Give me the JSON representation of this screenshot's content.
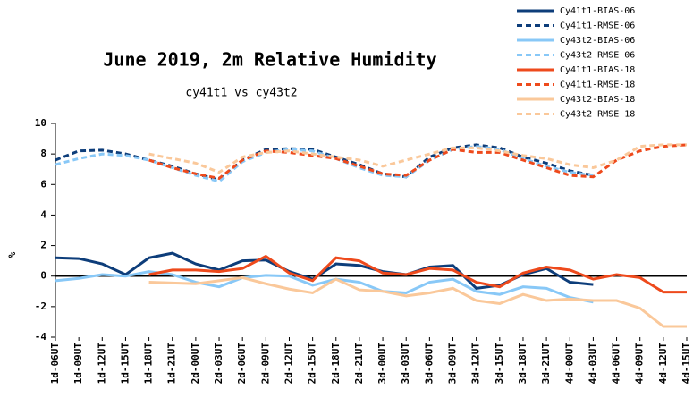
{
  "chart_data": {
    "type": "line",
    "title": "June 2019, 2m Relative Humidity",
    "subtitle": "cy41t1 vs cy43t2",
    "ylabel": "%",
    "categories": [
      "1d-06UT",
      "1d-09UT",
      "1d-12UT",
      "1d-15UT",
      "1d-18UT",
      "1d-21UT",
      "2d-00UT",
      "2d-03UT",
      "2d-06UT",
      "2d-09UT",
      "2d-12UT",
      "2d-15UT",
      "2d-18UT",
      "2d-21UT",
      "3d-00UT",
      "3d-03UT",
      "3d-06UT",
      "3d-09UT",
      "3d-12UT",
      "3d-15UT",
      "3d-18UT",
      "3d-21UT",
      "4d-00UT",
      "4d-03UT",
      "4d-06UT",
      "4d-09UT",
      "4d-12UT",
      "4d-15UT"
    ],
    "ylim": [
      -4,
      10
    ],
    "yticks": [
      -4,
      -2,
      0,
      2,
      4,
      6,
      8,
      10
    ],
    "grid": false,
    "legend": "top-right",
    "series": [
      {
        "name": "Cy41t1-BIAS-06",
        "color": "#0d3d7a",
        "dash": false,
        "values": [
          1.2,
          1.15,
          0.8,
          0.1,
          1.2,
          1.5,
          0.8,
          0.4,
          1.0,
          1.05,
          0.3,
          -0.2,
          0.8,
          0.7,
          0.3,
          0.1,
          0.6,
          0.7,
          -0.8,
          -0.6,
          0.1,
          0.5,
          -0.4,
          -0.55,
          null,
          null,
          null,
          null
        ]
      },
      {
        "name": "Cy41t1-RMSE-06",
        "color": "#0d3d7a",
        "dash": true,
        "values": [
          7.6,
          8.2,
          8.25,
          8.0,
          7.6,
          7.2,
          6.7,
          6.3,
          7.6,
          8.3,
          8.35,
          8.3,
          7.8,
          7.3,
          6.7,
          6.5,
          7.8,
          8.4,
          8.6,
          8.4,
          7.8,
          7.4,
          6.9,
          6.6,
          null,
          null,
          null,
          null
        ]
      },
      {
        "name": "Cy43t2-BIAS-06",
        "color": "#88c8f7",
        "dash": false,
        "values": [
          -0.3,
          -0.15,
          0.1,
          0.0,
          0.3,
          0.1,
          -0.4,
          -0.7,
          -0.1,
          0.05,
          0.0,
          -0.6,
          -0.2,
          -0.4,
          -1.0,
          -1.1,
          -0.4,
          -0.2,
          -1.0,
          -1.2,
          -0.7,
          -0.8,
          -1.4,
          -1.7,
          null,
          null,
          null,
          null
        ]
      },
      {
        "name": "Cy43t2-RMSE-06",
        "color": "#88c8f7",
        "dash": true,
        "values": [
          7.3,
          7.7,
          8.0,
          7.9,
          7.6,
          7.1,
          6.6,
          6.2,
          7.5,
          8.1,
          8.3,
          8.2,
          7.7,
          7.1,
          6.6,
          6.5,
          7.6,
          8.3,
          8.5,
          8.3,
          7.7,
          7.2,
          6.8,
          6.6,
          null,
          null,
          null,
          null
        ]
      },
      {
        "name": "Cy41t1-BIAS-18",
        "color": "#ee4a1c",
        "dash": false,
        "values": [
          null,
          null,
          null,
          null,
          0.1,
          0.4,
          0.4,
          0.3,
          0.5,
          1.3,
          0.2,
          -0.3,
          1.2,
          1.0,
          0.2,
          0.1,
          0.5,
          0.4,
          -0.4,
          -0.7,
          0.2,
          0.6,
          0.4,
          -0.2,
          0.1,
          -0.1,
          -1.05,
          -1.05
        ]
      },
      {
        "name": "Cy41t1-RMSE-18",
        "color": "#ee4a1c",
        "dash": true,
        "values": [
          null,
          null,
          null,
          null,
          7.6,
          7.1,
          6.7,
          6.4,
          7.6,
          8.2,
          8.1,
          7.9,
          7.7,
          7.2,
          6.7,
          6.6,
          7.6,
          8.3,
          8.1,
          8.1,
          7.6,
          7.1,
          6.6,
          6.5,
          7.6,
          8.2,
          8.5,
          8.6
        ]
      },
      {
        "name": "Cy43t2-BIAS-18",
        "color": "#fac89a",
        "dash": false,
        "values": [
          null,
          null,
          null,
          null,
          -0.4,
          -0.45,
          -0.5,
          -0.3,
          -0.1,
          -0.5,
          -0.85,
          -1.1,
          -0.2,
          -0.9,
          -1.0,
          -1.3,
          -1.1,
          -0.8,
          -1.6,
          -1.8,
          -1.2,
          -1.6,
          -1.5,
          -1.6,
          -1.6,
          -2.1,
          -3.3,
          -3.3
        ]
      },
      {
        "name": "Cy43t2-RMSE-18",
        "color": "#fac89a",
        "dash": true,
        "values": [
          null,
          null,
          null,
          null,
          8.0,
          7.7,
          7.4,
          6.8,
          7.8,
          8.1,
          8.2,
          8.0,
          7.8,
          7.6,
          7.2,
          7.6,
          8.0,
          8.4,
          8.4,
          8.2,
          7.9,
          7.7,
          7.3,
          7.1,
          7.6,
          8.5,
          8.6,
          8.6
        ]
      }
    ]
  }
}
